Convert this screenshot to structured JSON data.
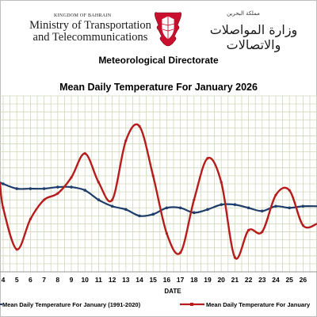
{
  "header": {
    "kingdom_label": "KINGDOM OF BAHRAIN",
    "ministry_line1": "Ministry of Transportation",
    "ministry_line2": "and Telecommunications",
    "arabic_sub": "مملكة البحرين",
    "arabic_name": "وزارة المواصلات والاتصالات"
  },
  "colors": {
    "normal": "#1f3d6b",
    "current": "#b71c1c",
    "grid": "#cfd8b8",
    "emblem": "#c8102e"
  },
  "chart_data": {
    "type": "line",
    "title": "Mean Daily Temperature For January 2026",
    "subtitle": "Meteorological Directorate",
    "xlabel": "DATE",
    "ylabel": "",
    "categories": [
      "4",
      "5",
      "6",
      "7",
      "8",
      "9",
      "10",
      "11",
      "12",
      "13",
      "14",
      "15",
      "16",
      "17",
      "18",
      "19",
      "20",
      "21",
      "22",
      "23",
      "24",
      "25",
      "26"
    ],
    "ylim": [
      13,
      24
    ],
    "grid": true,
    "legend_position": "bottom",
    "series": [
      {
        "name": "Mean Daily Temperature For January (1991-2020)",
        "color": "#1f3d6b",
        "values": [
          18.5,
          18.2,
          18.2,
          18.2,
          18.3,
          18.3,
          18.1,
          17.5,
          17.1,
          16.9,
          16.5,
          16.6,
          17.0,
          17.0,
          16.7,
          16.9,
          17.2,
          17.2,
          17.0,
          16.8,
          17.1,
          17.0,
          17.1
        ]
      },
      {
        "name": "Mean Daily Temperature For January",
        "color": "#b71c1c",
        "values": [
          17.0,
          14.4,
          16.3,
          17.5,
          17.9,
          18.9,
          20.4,
          18.6,
          17.5,
          21.2,
          22.1,
          19.0,
          15.4,
          14.2,
          17.5,
          20.1,
          18.6,
          13.9,
          15.6,
          15.5,
          17.8,
          18.1,
          15.9
        ]
      }
    ]
  }
}
